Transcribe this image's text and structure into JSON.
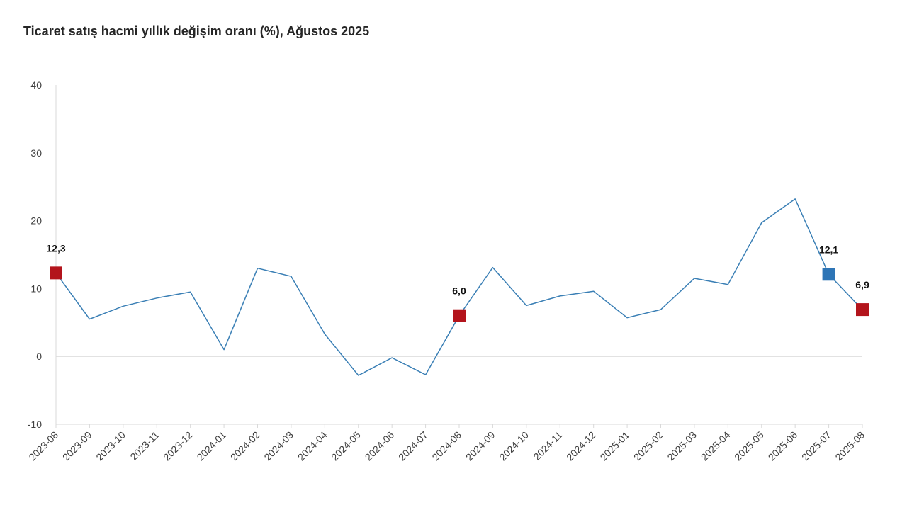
{
  "chart_data": {
    "type": "line",
    "title": "Ticaret satış hacmi yıllık değişim oranı (%), Ağustos 2025",
    "xlabel": "",
    "ylabel": "",
    "ylim": [
      -10,
      40
    ],
    "yticks": [
      -10,
      0,
      10,
      20,
      30,
      40
    ],
    "grid": false,
    "legend": "none",
    "categories": [
      "2023-08",
      "2023-09",
      "2023-10",
      "2023-11",
      "2023-12",
      "2024-01",
      "2024-02",
      "2024-03",
      "2024-04",
      "2024-05",
      "2024-06",
      "2024-07",
      "2024-08",
      "2024-09",
      "2024-10",
      "2024-11",
      "2024-12",
      "2025-01",
      "2025-02",
      "2025-03",
      "2025-04",
      "2025-05",
      "2025-06",
      "2025-07",
      "2025-08"
    ],
    "series": [
      {
        "color": "#3a7fb5",
        "values": [
          12.3,
          5.5,
          7.4,
          8.6,
          9.5,
          1.0,
          13.0,
          11.8,
          3.3,
          -2.8,
          -0.2,
          -2.7,
          6.0,
          13.1,
          7.5,
          8.9,
          9.6,
          5.7,
          6.9,
          11.5,
          10.6,
          19.7,
          23.2,
          12.1,
          6.9
        ]
      }
    ],
    "highlighted_points": [
      {
        "category": "2023-08",
        "value": 12.3,
        "label": "12,3",
        "color": "#b3141c"
      },
      {
        "category": "2024-08",
        "value": 6.0,
        "label": "6,0",
        "color": "#b3141c"
      },
      {
        "category": "2025-07",
        "value": 12.1,
        "label": "12,1",
        "color": "#2e75b6"
      },
      {
        "category": "2025-08",
        "value": 6.9,
        "label": "6,9",
        "color": "#b3141c"
      }
    ]
  }
}
